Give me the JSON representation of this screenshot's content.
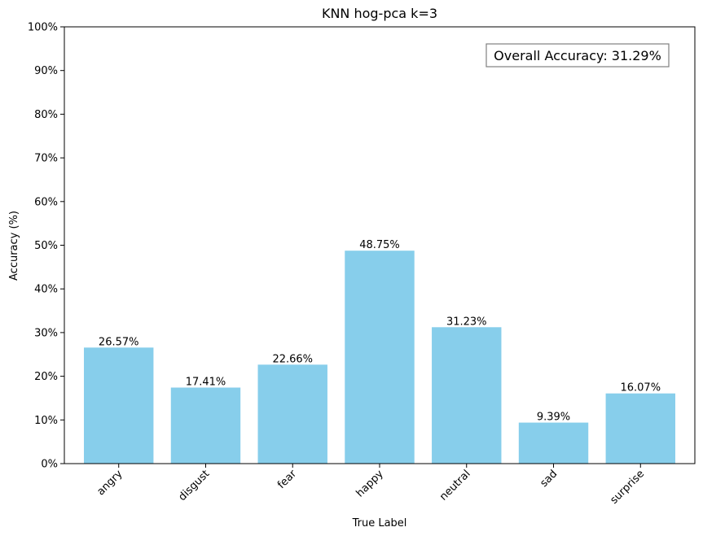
{
  "chart_data": {
    "type": "bar",
    "title": "KNN hog-pca k=3",
    "xlabel": "True Label",
    "ylabel": "Accuracy (%)",
    "categories": [
      "angry",
      "disgust",
      "fear",
      "happy",
      "neutral",
      "sad",
      "surprise"
    ],
    "values": [
      26.57,
      17.41,
      22.66,
      48.75,
      31.23,
      9.39,
      16.07
    ],
    "value_labels": [
      "26.57%",
      "17.41%",
      "22.66%",
      "48.75%",
      "31.23%",
      "9.39%",
      "16.07%"
    ],
    "ylim": [
      0,
      100
    ],
    "yticks": [
      0,
      10,
      20,
      30,
      40,
      50,
      60,
      70,
      80,
      90,
      100
    ],
    "ytick_labels": [
      "0%",
      "10%",
      "20%",
      "30%",
      "40%",
      "50%",
      "60%",
      "70%",
      "80%",
      "90%",
      "100%"
    ],
    "bar_color": "#87ceeb",
    "grid": false,
    "annotation": "Overall Accuracy: 31.29%",
    "annotation_placement": "top-right"
  }
}
